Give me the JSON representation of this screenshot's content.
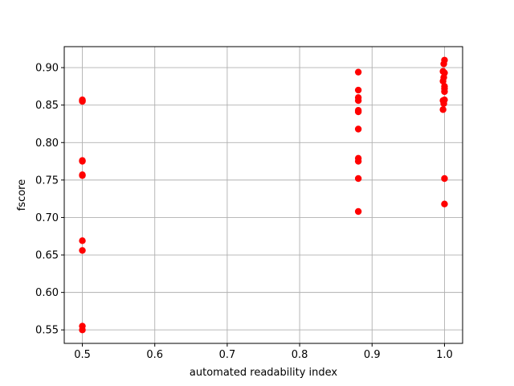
{
  "chart_data": {
    "type": "scatter",
    "title": "",
    "xlabel": "automated readability index",
    "ylabel": "fscore",
    "xlim": [
      0.475,
      1.025
    ],
    "ylim": [
      0.532,
      0.928
    ],
    "xticks": [
      0.5,
      0.6,
      0.7,
      0.8,
      0.9,
      1.0
    ],
    "xtick_labels": [
      "0.5",
      "0.6",
      "0.7",
      "0.8",
      "0.9",
      "1.0"
    ],
    "yticks": [
      0.55,
      0.6,
      0.65,
      0.7,
      0.75,
      0.8,
      0.85,
      0.9
    ],
    "ytick_labels": [
      "0.55",
      "0.60",
      "0.65",
      "0.70",
      "0.75",
      "0.80",
      "0.85",
      "0.90"
    ],
    "grid": true,
    "color": "#ff0000",
    "points": [
      {
        "x": 0.5,
        "y": 0.856
      },
      {
        "x": 0.5,
        "y": 0.855
      },
      {
        "x": 0.5,
        "y": 0.857
      },
      {
        "x": 0.5,
        "y": 0.776
      },
      {
        "x": 0.5,
        "y": 0.775
      },
      {
        "x": 0.5,
        "y": 0.757
      },
      {
        "x": 0.5,
        "y": 0.756
      },
      {
        "x": 0.5,
        "y": 0.669
      },
      {
        "x": 0.5,
        "y": 0.656
      },
      {
        "x": 0.5,
        "y": 0.555
      },
      {
        "x": 0.5,
        "y": 0.55
      },
      {
        "x": 0.881,
        "y": 0.894
      },
      {
        "x": 0.881,
        "y": 0.87
      },
      {
        "x": 0.881,
        "y": 0.86
      },
      {
        "x": 0.881,
        "y": 0.856
      },
      {
        "x": 0.881,
        "y": 0.843
      },
      {
        "x": 0.881,
        "y": 0.841
      },
      {
        "x": 0.881,
        "y": 0.818
      },
      {
        "x": 0.881,
        "y": 0.779
      },
      {
        "x": 0.881,
        "y": 0.775
      },
      {
        "x": 0.881,
        "y": 0.752
      },
      {
        "x": 0.881,
        "y": 0.708
      },
      {
        "x": 1.0,
        "y": 0.91
      },
      {
        "x": 0.999,
        "y": 0.905
      },
      {
        "x": 0.998,
        "y": 0.895
      },
      {
        "x": 1.0,
        "y": 0.893
      },
      {
        "x": 0.999,
        "y": 0.887
      },
      {
        "x": 0.998,
        "y": 0.882
      },
      {
        "x": 1.0,
        "y": 0.875
      },
      {
        "x": 1.0,
        "y": 0.872
      },
      {
        "x": 1.0,
        "y": 0.868
      },
      {
        "x": 1.0,
        "y": 0.857
      },
      {
        "x": 0.998,
        "y": 0.856
      },
      {
        "x": 0.999,
        "y": 0.852
      },
      {
        "x": 0.998,
        "y": 0.844
      },
      {
        "x": 1.0,
        "y": 0.752
      },
      {
        "x": 1.0,
        "y": 0.718
      }
    ]
  }
}
